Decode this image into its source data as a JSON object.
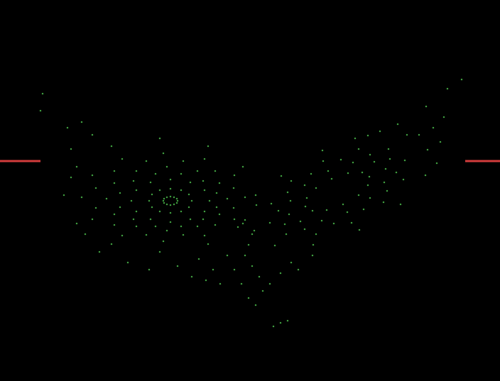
{
  "chart_data": {
    "type": "scatter",
    "xlim": [
      0,
      704
    ],
    "ylim": [
      537,
      0
    ],
    "grid": false,
    "tick_labels": false,
    "series": [
      {
        "type": "scatter",
        "color": "#52cc52",
        "marker": "circle",
        "x": [
          250,
          249,
          245,
          240,
          235,
          231,
          230,
          231,
          235,
          240,
          245,
          249,
          270,
          266,
          255,
          240,
          225,
          214,
          210,
          214,
          225,
          240,
          255,
          266,
          295,
          288,
          268,
          240,
          212,
          192,
          185,
          192,
          212,
          240,
          268,
          288,
          320,
          309,
          278,
          235,
          192,
          161,
          150,
          161,
          192,
          235,
          278,
          309,
          345,
          330,
          288,
          230,
          172,
          130,
          115,
          130,
          172,
          230,
          288,
          330,
          360,
          342,
          293,
          225,
          157,
          108,
          90,
          108,
          157,
          225,
          293,
          342,
          305,
          286,
          255,
          219,
          188,
          169,
          169,
          188,
          219,
          255,
          286,
          305,
          329,
          303,
          258,
          206,
          161,
          135,
          135,
          161,
          206,
          258,
          303,
          329,
          520,
          518,
          505,
          483,
          460,
          440,
          430,
          432,
          445,
          467,
          490,
          510,
          543,
          541,
          521,
          489,
          453,
          423,
          407,
          409,
          429,
          462,
          497,
          527,
          570,
          568,
          540,
          495,
          445,
          403,
          380,
          382,
          410,
          455,
          505,
          547,
          602,
          599,
          564,
          506,
          441,
          387,
          358,
          361,
          396,
          454,
          518,
          573,
          558,
          545,
          512,
          470,
          429,
          401,
          392,
          405,
          438,
          480,
          521,
          549,
          610,
          625,
          630,
          650,
          600,
          590,
          560,
          535,
          620,
          500,
          615,
          60,
          57,
          95,
          100,
          115,
          130,
          100,
          120,
          140,
          180,
          210,
          250,
          280,
          320,
          330,
          340,
          350,
          360,
          300,
          310,
          370,
          380,
          395,
          410,
          350,
          345,
          355,
          365,
          385,
          395,
          405,
          290,
          270,
          420,
          440,
          345,
          355,
          335
        ],
        "values": [
          283,
          280,
          278,
          277,
          278,
          280,
          283,
          286,
          288,
          289,
          288,
          286,
          283,
          274,
          268,
          266,
          268,
          274,
          283,
          292,
          298,
          300,
          298,
          292,
          283,
          268,
          257,
          253,
          257,
          268,
          283,
          298,
          309,
          313,
          309,
          298,
          280,
          258,
          241,
          235,
          241,
          258,
          280,
          302,
          319,
          325,
          319,
          302,
          278,
          247,
          224,
          216,
          224,
          247,
          278,
          309,
          332,
          340,
          332,
          309,
          275,
          235,
          206,
          195,
          206,
          235,
          275,
          315,
          344,
          355,
          344,
          315,
          272,
          255,
          245,
          245,
          255,
          272,
          292,
          309,
          319,
          319,
          309,
          292,
          265,
          241,
          227,
          227,
          241,
          265,
          293,
          317,
          331,
          331,
          317,
          293,
          249,
          261,
          275,
          288,
          296,
          297,
          291,
          279,
          265,
          252,
          244,
          243,
          238,
          257,
          279,
          299,
          311,
          312,
          302,
          283,
          261,
          241,
          229,
          228,
          226,
          253,
          285,
          314,
          330,
          330,
          314,
          287,
          255,
          227,
          210,
          210,
          211,
          247,
          288,
          324,
          345,
          346,
          325,
          289,
          248,
          212,
          191,
          190,
          243,
          269,
          295,
          315,
          323,
          316,
          297,
          271,
          245,
          225,
          218,
          224,
          180,
          165,
          125,
          112,
          150,
          190,
          175,
          185,
          200,
          195,
          230,
          132,
          156,
          180,
          210,
          172,
          190,
          250,
          330,
          355,
          370,
          380,
          375,
          365,
          360,
          380,
          400,
          420,
          430,
          380,
          400,
          410,
          400,
          385,
          370,
          345,
          360,
          375,
          390,
          460,
          455,
          452,
          395,
          390,
          380,
          360,
          310,
          330,
          320
        ]
      },
      {
        "type": "line",
        "color": "#d23c3c",
        "x": [
          0,
          57
        ],
        "values": [
          227,
          227
        ]
      },
      {
        "type": "line",
        "color": "#d23c3c",
        "x": [
          655,
          704
        ],
        "values": [
          227,
          227
        ]
      }
    ]
  }
}
